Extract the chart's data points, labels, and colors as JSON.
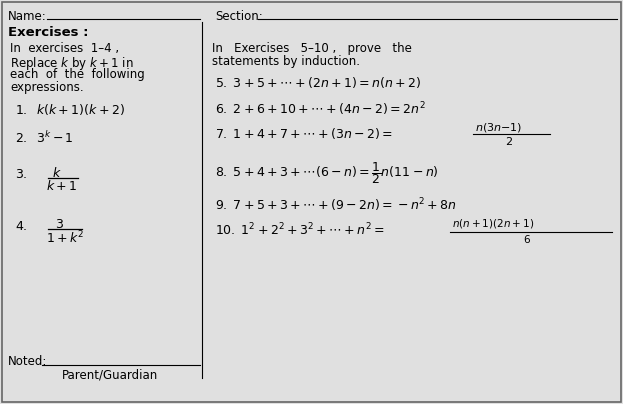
{
  "bg_color": "#e0e0e0",
  "border_color": "#666666",
  "title_name": "Name:",
  "title_section": "Section:",
  "exercises_label": "Exercises :",
  "left_intro_lines": [
    "In  exercises  1–4 ,",
    "Replace $k$ by $k+1$ in",
    "each  of  the  following",
    "expressions."
  ],
  "right_intro_1": "In   Exercises   5–10 ,   prove   the",
  "right_intro_2": "statements by induction.",
  "noted_label": "Noted:",
  "guardian_label": "Parent/Guardian"
}
